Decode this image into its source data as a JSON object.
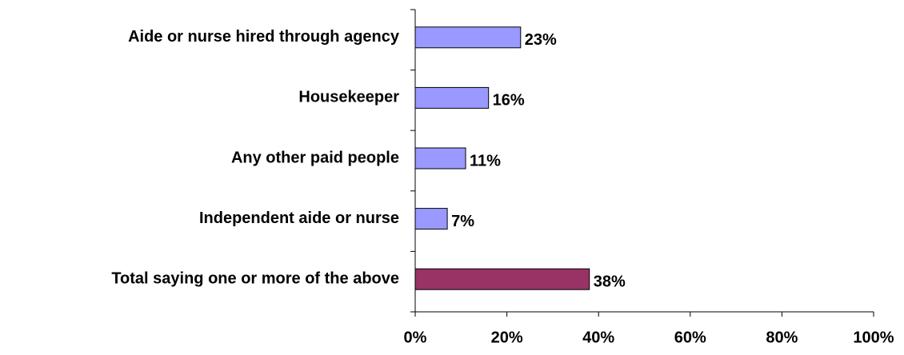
{
  "chart_data": {
    "type": "bar",
    "orientation": "horizontal",
    "categories": [
      "Aide or nurse hired through agency",
      "Housekeeper",
      "Any other paid people",
      "Independent aide or nurse",
      "Total saying one or more of the above"
    ],
    "values": [
      23,
      16,
      11,
      7,
      38
    ],
    "value_labels": [
      "23%",
      "16%",
      "11%",
      "7%",
      "38%"
    ],
    "colors": [
      "#9999ff",
      "#9999ff",
      "#9999ff",
      "#9999ff",
      "#993366"
    ],
    "xlim": [
      0,
      100
    ],
    "xticks": [
      {
        "value": 0,
        "label": "0%"
      },
      {
        "value": 20,
        "label": "20%"
      },
      {
        "value": 40,
        "label": "40%"
      },
      {
        "value": 60,
        "label": "60%"
      },
      {
        "value": 80,
        "label": "80%"
      },
      {
        "value": 100,
        "label": "100%"
      }
    ],
    "grid": false
  }
}
